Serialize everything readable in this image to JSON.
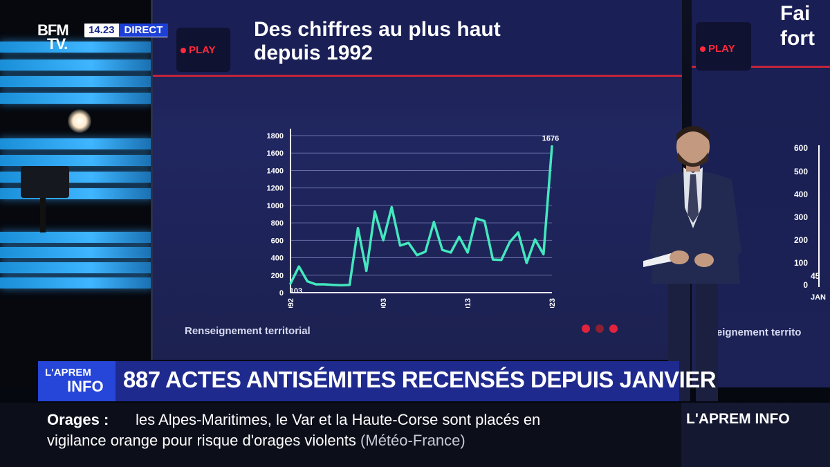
{
  "channel": {
    "logo_line1": "BFM",
    "logo_line2": "TV.",
    "time": "14.23",
    "live_label": "DIRECT"
  },
  "screen": {
    "title_line1": "Des chiffres au plus haut",
    "title_line2": "depuis 1992",
    "play_label": "PLAY",
    "source": "Renseignement territorial"
  },
  "chart_data": {
    "type": "line",
    "x_tick_labels": [
      "1992",
      "2003",
      "2013",
      "2023"
    ],
    "y_tick_labels": [
      "0",
      "200",
      "400",
      "600",
      "800",
      "1000",
      "1200",
      "1400",
      "1600",
      "1800"
    ],
    "ylim": [
      0,
      1800
    ],
    "xlim": [
      1992,
      2023
    ],
    "grid": true,
    "x": [
      1992,
      1993,
      1994,
      1995,
      1996,
      1997,
      1998,
      1999,
      2000,
      2001,
      2002,
      2003,
      2004,
      2005,
      2006,
      2007,
      2008,
      2009,
      2010,
      2011,
      2012,
      2013,
      2014,
      2015,
      2016,
      2017,
      2018,
      2019,
      2020,
      2021,
      2022,
      2023
    ],
    "y": [
      103,
      300,
      130,
      95,
      95,
      90,
      85,
      90,
      740,
      250,
      930,
      600,
      980,
      540,
      570,
      430,
      470,
      810,
      490,
      460,
      640,
      460,
      850,
      820,
      380,
      375,
      580,
      690,
      340,
      610,
      440,
      1676
    ],
    "annotations": [
      {
        "x": 1992,
        "y": 103,
        "label": "103"
      },
      {
        "x": 2023,
        "y": 1676,
        "label": "1676"
      }
    ],
    "line_color": "#43e8bf"
  },
  "right_panel": {
    "title_line1": "Fai",
    "title_line2": "fort",
    "play_label": "PLAY",
    "y_ticks": [
      "600",
      "500",
      "400",
      "300",
      "200",
      "100",
      "0"
    ],
    "partial_value": "45",
    "partial_x_label": "JAN",
    "source": "enseignement territo"
  },
  "lower_third": {
    "show_line1": "L'APREM",
    "show_line2": "INFO",
    "headline": "887 ACTES ANTISÉMITES RECENSÉS DEPUIS JANVIER"
  },
  "ticker": {
    "label": "Orages",
    "separator": ":",
    "line1": "les Alpes-Maritimes, le Var et la Haute-Corse sont placés en",
    "line2": "vigilance orange pour risque d'orages violents",
    "source": "(Météo-France)",
    "corner": "L'APREM INFO"
  }
}
